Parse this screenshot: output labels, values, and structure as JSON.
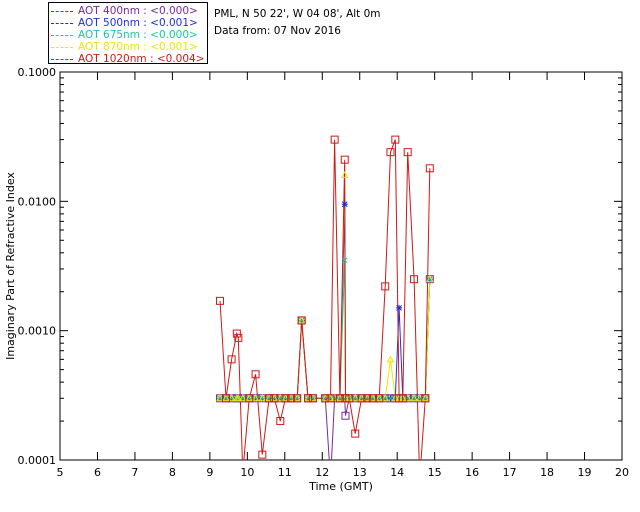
{
  "header": {
    "site": "PML, N 50 22', W 04 08', Alt 0m",
    "date": "Data from: 07 Nov 2016"
  },
  "legend": [
    {
      "label": "AOT  400nm : <0.000>",
      "color": "#7a2a9a"
    },
    {
      "label": "AOT  500nm : <0.001>",
      "color": "#1f2fd8"
    },
    {
      "label": "AOT  675nm : <0.000>",
      "color": "#18c8a0"
    },
    {
      "label": "AOT  870nm : <0.001>",
      "color": "#e8e800"
    },
    {
      "label": "AOT 1020nm : <0.004>",
      "color": "#d01818"
    }
  ],
  "chart_data": {
    "type": "line",
    "xlabel": "Time (GMT)",
    "ylabel": "Imaginary Part of Refractive Index",
    "xlim": [
      5,
      20
    ],
    "ylim": [
      0.0001,
      0.1
    ],
    "yscale": "log",
    "xticks": [
      "5",
      "6",
      "7",
      "8",
      "9",
      "10",
      "11",
      "12",
      "13",
      "14",
      "15",
      "16",
      "17",
      "18",
      "19",
      "20"
    ],
    "yticks": [
      {
        "value": 0.0001,
        "label": "0.0001"
      },
      {
        "value": 0.001,
        "label": "0.0010"
      },
      {
        "value": 0.01,
        "label": "0.0100"
      },
      {
        "value": 0.1,
        "label": "0.1000"
      }
    ],
    "x": [
      9.27,
      9.43,
      9.58,
      9.72,
      9.76,
      9.88,
      10.05,
      10.22,
      10.4,
      10.58,
      10.72,
      10.88,
      11.02,
      11.17,
      11.33,
      11.45,
      11.62,
      11.75,
      12.08,
      12.22,
      12.33,
      12.47,
      12.6,
      12.62,
      12.72,
      12.88,
      13.05,
      13.2,
      13.35,
      13.52,
      13.68,
      13.82,
      13.95,
      14.05,
      14.15,
      14.28,
      14.45,
      14.6,
      14.75,
      14.87
    ],
    "series": [
      {
        "name": "AOT  400nm : <0.000>",
        "color": "#7a2a9a",
        "marker": "square",
        "values": [
          0.0003,
          0.0003,
          0.0003,
          0.0003,
          0.0003,
          0.0003,
          0.0003,
          0.0003,
          0.0003,
          0.0003,
          0.0003,
          0.0003,
          0.0003,
          0.0003,
          0.0003,
          0.0012,
          0.0003,
          0.0003,
          0.0003,
          7e-05,
          0.0003,
          0.0003,
          0.0003,
          0.00022,
          0.0003,
          0.0003,
          0.0003,
          0.0003,
          0.0003,
          0.0003,
          0.0003,
          0.0003,
          0.0003,
          0.0003,
          0.0003,
          0.0003,
          0.0003,
          0.0003,
          0.0003,
          0.0025
        ]
      },
      {
        "name": "AOT  500nm : <0.001>",
        "color": "#1f2fd8",
        "marker": "star",
        "values": [
          0.0003,
          0.0003,
          0.0003,
          0.0003,
          0.0003,
          0.0003,
          0.0003,
          0.0003,
          0.0003,
          0.0003,
          0.0003,
          0.0003,
          0.0003,
          0.0003,
          0.0003,
          0.0012,
          0.0003,
          0.0003,
          0.0003,
          0.0003,
          0.0003,
          0.0003,
          0.0095,
          0.0003,
          0.0003,
          0.0003,
          0.0003,
          0.0003,
          0.0003,
          0.0003,
          0.0003,
          0.0003,
          0.0003,
          0.0015,
          0.0003,
          0.0003,
          0.0003,
          0.0003,
          0.0003,
          0.0025
        ]
      },
      {
        "name": "AOT  675nm : <0.000>",
        "color": "#18c8a0",
        "marker": "cross",
        "values": [
          0.0003,
          0.0003,
          0.0003,
          0.0003,
          0.0003,
          0.0003,
          0.0003,
          0.0003,
          0.0003,
          0.0003,
          0.0003,
          0.0003,
          0.0003,
          0.0003,
          0.0003,
          0.0012,
          0.0003,
          0.0003,
          0.0003,
          0.0003,
          0.0003,
          0.0003,
          0.0035,
          0.0003,
          0.0003,
          0.0003,
          0.0003,
          0.0003,
          0.0003,
          0.0003,
          0.0003,
          0.0003,
          0.0003,
          0.0003,
          0.0003,
          0.0003,
          0.0003,
          0.0003,
          0.0003,
          0.0025
        ]
      },
      {
        "name": "AOT  870nm : <0.001>",
        "color": "#e8e800",
        "marker": "triangle",
        "values": [
          0.0003,
          0.0003,
          0.0003,
          0.0003,
          0.0003,
          0.0003,
          0.0003,
          0.0003,
          0.0003,
          0.0003,
          0.0003,
          0.0003,
          0.0003,
          0.0003,
          0.0003,
          0.0012,
          0.0003,
          0.0003,
          0.0003,
          0.0003,
          0.0003,
          0.0003,
          0.016,
          0.0003,
          0.0003,
          0.0003,
          0.0003,
          0.0003,
          0.0003,
          0.0003,
          0.0003,
          0.0006,
          0.0003,
          0.0003,
          0.0003,
          0.0003,
          0.0003,
          0.0003,
          0.0003,
          0.0025
        ]
      },
      {
        "name": "AOT 1020nm : <0.004>",
        "color": "#d01818",
        "marker": "square",
        "values": [
          0.0017,
          0.0003,
          0.0006,
          0.00095,
          0.00088,
          8e-05,
          0.0003,
          0.00046,
          0.00011,
          0.0003,
          0.0003,
          0.0002,
          0.0003,
          0.0003,
          0.0003,
          0.0012,
          0.0003,
          0.0003,
          0.0003,
          0.0003,
          0.03,
          0.0003,
          0.021,
          0.0003,
          0.0003,
          0.00016,
          0.0003,
          0.0003,
          0.0003,
          0.0003,
          0.0022,
          0.024,
          0.03,
          0.0003,
          0.0003,
          0.024,
          0.0025,
          7e-05,
          0.0003,
          0.018
        ]
      }
    ]
  }
}
